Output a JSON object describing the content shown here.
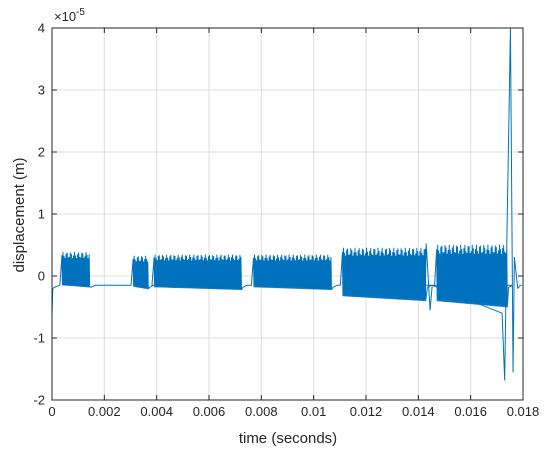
{
  "chart_data": {
    "type": "line",
    "xlabel": "time (seconds)",
    "ylabel": "displacement (m)",
    "y_exponent_label": "×10",
    "y_exponent_power": "-5",
    "xlim": [
      0,
      0.018
    ],
    "ylim": [
      -2,
      4
    ],
    "x_ticks": [
      0,
      0.002,
      0.004,
      0.006,
      0.008,
      0.01,
      0.012,
      0.014,
      0.016,
      0.018
    ],
    "x_tick_labels": [
      "0",
      "0.002",
      "0.004",
      "0.006",
      "0.008",
      "0.01",
      "0.012",
      "0.014",
      "0.016",
      "0.018"
    ],
    "y_ticks": [
      -2,
      -1,
      0,
      1,
      2,
      3,
      4
    ],
    "y_tick_labels": [
      "-2",
      "-1",
      "0",
      "1",
      "2",
      "3",
      "4"
    ],
    "grid": true,
    "line_color": "#0072BD",
    "series": [
      {
        "baseline": -0.15,
        "segments": [
          {
            "x_start": 0.00038,
            "x_end": 0.00145,
            "peak_max": 0.38,
            "peak_min": -0.12,
            "trough": -0.18
          },
          {
            "x_start": 0.0031,
            "x_end": 0.00368,
            "peak_max": 0.32,
            "peak_min": -0.15,
            "trough": -0.21
          },
          {
            "x_start": 0.0039,
            "x_end": 0.00725,
            "peak_max": 0.34,
            "peak_min": -0.14,
            "trough": -0.22
          },
          {
            "x_start": 0.0077,
            "x_end": 0.0107,
            "peak_max": 0.34,
            "peak_min": -0.15,
            "trough": -0.22
          },
          {
            "x_start": 0.0111,
            "x_end": 0.0143,
            "peak_max": 0.45,
            "peak_min": -0.2,
            "trough": -0.4
          },
          {
            "x_start": 0.0147,
            "x_end": 0.0174,
            "peak_max": 0.5,
            "peak_min": -0.25,
            "trough": -0.5
          }
        ],
        "events": [
          {
            "x": 0.0,
            "y": -0.65
          },
          {
            "x": 0.0143,
            "y": 0.52
          },
          {
            "x": 0.01445,
            "y": -0.55
          },
          {
            "x": 0.0173,
            "y": -1.68
          },
          {
            "x": 0.01752,
            "y": 4.0
          },
          {
            "x": 0.01762,
            "y": -1.55
          },
          {
            "x": 0.0178,
            "y": -0.2
          }
        ]
      }
    ]
  }
}
